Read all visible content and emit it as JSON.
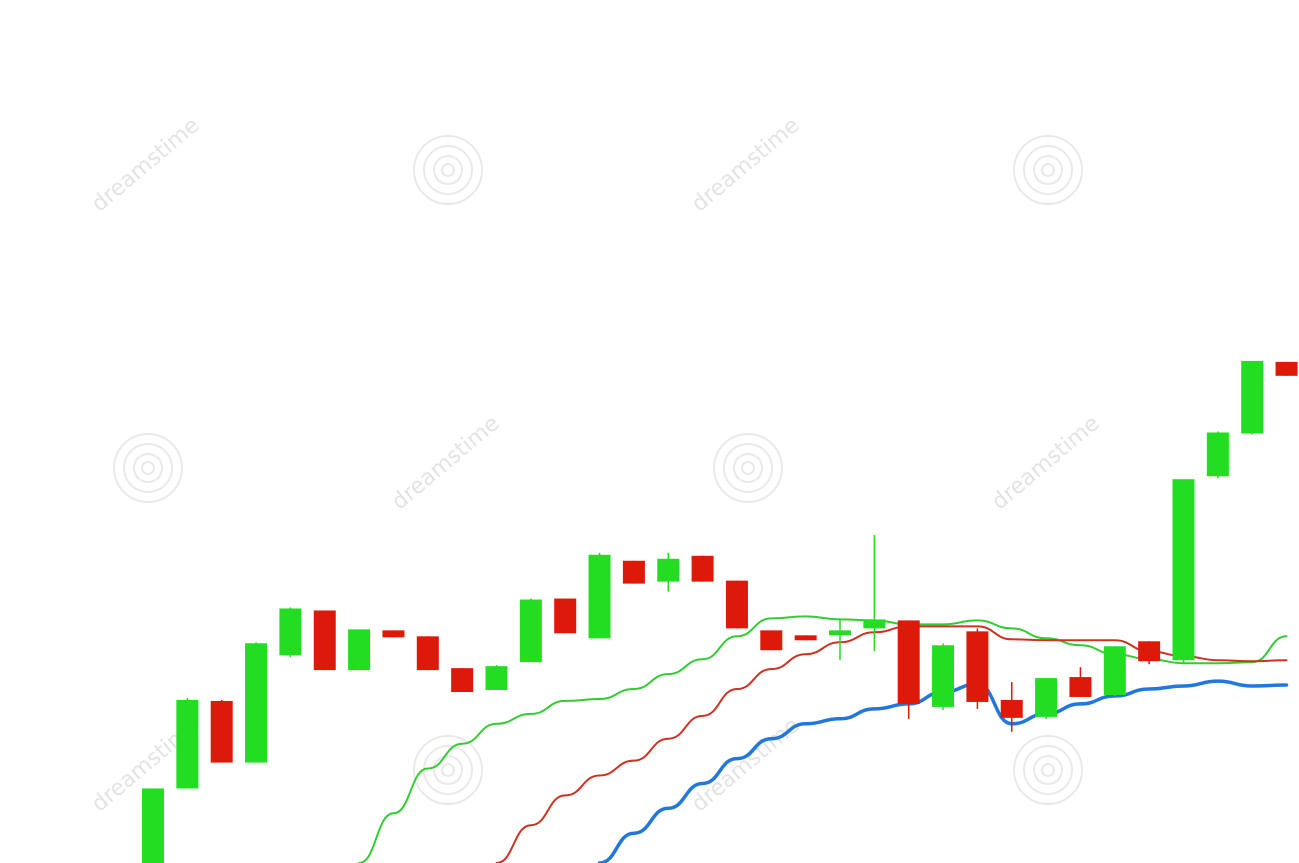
{
  "chart_data": {
    "type": "candlestick",
    "title": "",
    "xlabel": "",
    "ylabel": "",
    "ylim": [
      0,
      520
    ],
    "grid": false,
    "legend": "none",
    "colors": {
      "up": "#22dd22",
      "down": "#dd1a0a",
      "ma_fast": "#33cc33",
      "ma_mid": "#cc3322",
      "ma_slow": "#2277dd",
      "watermark": "#d8d8d8"
    },
    "candles": [
      {
        "o": 0,
        "h": 75,
        "l": 0,
        "c": 75
      },
      {
        "o": 75,
        "h": 166,
        "l": 75,
        "c": 164
      },
      {
        "o": 163,
        "h": 164,
        "l": 101,
        "c": 101
      },
      {
        "o": 101,
        "h": 222,
        "l": 101,
        "c": 221
      },
      {
        "o": 209,
        "h": 257,
        "l": 207,
        "c": 256
      },
      {
        "o": 254,
        "h": 254,
        "l": 194,
        "c": 194
      },
      {
        "o": 194,
        "h": 235,
        "l": 194,
        "c": 235
      },
      {
        "o": 234,
        "h": 234,
        "l": 227,
        "c": 227
      },
      {
        "o": 228,
        "h": 228,
        "l": 194,
        "c": 194
      },
      {
        "o": 196,
        "h": 196,
        "l": 172,
        "c": 172
      },
      {
        "o": 174,
        "h": 199,
        "l": 174,
        "c": 198
      },
      {
        "o": 202,
        "h": 266,
        "l": 202,
        "c": 265
      },
      {
        "o": 266,
        "h": 266,
        "l": 231,
        "c": 231
      },
      {
        "o": 226,
        "h": 312,
        "l": 226,
        "c": 310
      },
      {
        "o": 304,
        "h": 304,
        "l": 281,
        "c": 281
      },
      {
        "o": 283,
        "h": 312,
        "l": 273,
        "c": 306
      },
      {
        "o": 309,
        "h": 309,
        "l": 283,
        "c": 283
      },
      {
        "o": 284,
        "h": 284,
        "l": 236,
        "c": 236
      },
      {
        "o": 234,
        "h": 234,
        "l": 214,
        "c": 214
      },
      {
        "o": 229,
        "h": 229,
        "l": 224,
        "c": 224
      },
      {
        "o": 229,
        "h": 246,
        "l": 204,
        "c": 234
      },
      {
        "o": 236,
        "h": 330,
        "l": 213,
        "c": 245
      },
      {
        "o": 244,
        "h": 244,
        "l": 145,
        "c": 160
      },
      {
        "o": 157,
        "h": 221,
        "l": 154,
        "c": 219
      },
      {
        "o": 233,
        "h": 236,
        "l": 155,
        "c": 162
      },
      {
        "o": 164,
        "h": 182,
        "l": 132,
        "c": 146
      },
      {
        "o": 147,
        "h": 186,
        "l": 145,
        "c": 186
      },
      {
        "o": 187,
        "h": 197,
        "l": 168,
        "c": 167
      },
      {
        "o": 169,
        "h": 218,
        "l": 168,
        "c": 218
      },
      {
        "o": 223,
        "h": 223,
        "l": 200,
        "c": 203
      },
      {
        "o": 204,
        "h": 385,
        "l": 200,
        "c": 386
      },
      {
        "o": 389,
        "h": 434,
        "l": 387,
        "c": 433
      },
      {
        "o": 432,
        "h": 505,
        "l": 431,
        "c": 505
      },
      {
        "o": 504,
        "h": 504,
        "l": 490,
        "c": 490
      }
    ],
    "moving_averages": [
      {
        "kind": "fast",
        "values": [
          null,
          null,
          null,
          null,
          null,
          null,
          0,
          50,
          95,
          120,
          140,
          150,
          163,
          165,
          175,
          190,
          205,
          228,
          246,
          248,
          245,
          244,
          240,
          240,
          244,
          236,
          226,
          219,
          210,
          205,
          201,
          201,
          202,
          228
        ]
      },
      {
        "kind": "mid",
        "values": [
          null,
          null,
          null,
          null,
          null,
          null,
          null,
          null,
          null,
          null,
          0,
          38,
          68,
          88,
          103,
          125,
          148,
          175,
          195,
          210,
          222,
          232,
          238,
          238,
          238,
          225,
          224,
          224,
          224,
          213,
          208,
          204,
          203,
          204
        ]
      },
      {
        "kind": "slow",
        "values": [
          null,
          null,
          null,
          null,
          null,
          null,
          null,
          null,
          null,
          null,
          null,
          null,
          null,
          0,
          30,
          55,
          80,
          105,
          125,
          140,
          145,
          155,
          160,
          172,
          180,
          140,
          150,
          160,
          168,
          175,
          178,
          183,
          178,
          179
        ]
      }
    ]
  },
  "watermark": {
    "text": "dreamstime"
  }
}
